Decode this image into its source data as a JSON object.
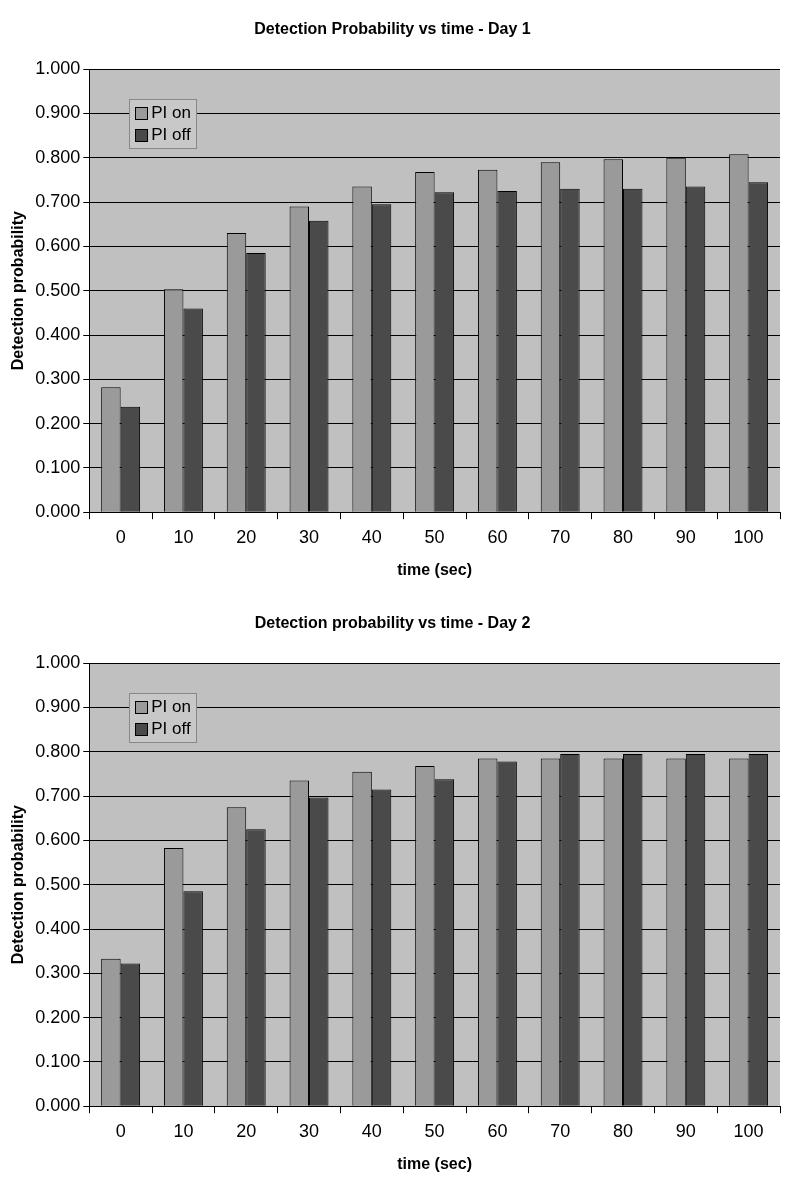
{
  "chart_data": [
    {
      "type": "bar",
      "title": "Detection Probability vs time - Day 1",
      "xlabel": "time (sec)",
      "ylabel": "Detection probability",
      "categories": [
        "0",
        "10",
        "20",
        "30",
        "40",
        "50",
        "60",
        "70",
        "80",
        "90",
        "100"
      ],
      "series": [
        {
          "name": "PI on",
          "color": "#9a9a9a",
          "values": [
            0.282,
            0.503,
            0.63,
            0.69,
            0.735,
            0.768,
            0.773,
            0.79,
            0.797,
            0.8,
            0.808
          ]
        },
        {
          "name": "PI off",
          "color": "#4a4a4a",
          "values": [
            0.238,
            0.46,
            0.585,
            0.658,
            0.695,
            0.722,
            0.725,
            0.73,
            0.73,
            0.735,
            0.745
          ]
        }
      ],
      "ylim": [
        0,
        1
      ],
      "yticks": [
        {
          "value": 0,
          "label": "0.000"
        },
        {
          "value": 0.1,
          "label": "0.100"
        },
        {
          "value": 0.2,
          "label": "0.200"
        },
        {
          "value": 0.3,
          "label": "0.300"
        },
        {
          "value": 0.4,
          "label": "0.400"
        },
        {
          "value": 0.5,
          "label": "0.500"
        },
        {
          "value": 0.6,
          "label": "0.600"
        },
        {
          "value": 0.7,
          "label": "0.700"
        },
        {
          "value": 0.8,
          "label": "0.800"
        },
        {
          "value": 0.9,
          "label": "0.900"
        },
        {
          "value": 1,
          "label": "1.000"
        }
      ],
      "grid": "y",
      "legend": "top left"
    },
    {
      "type": "bar",
      "title": "Detection probability vs time - Day 2",
      "xlabel": "time (sec)",
      "ylabel": "Detection probability",
      "categories": [
        "0",
        "10",
        "20",
        "30",
        "40",
        "50",
        "60",
        "70",
        "80",
        "90",
        "100"
      ],
      "series": [
        {
          "name": "PI on",
          "color": "#9a9a9a",
          "values": [
            0.333,
            0.583,
            0.675,
            0.735,
            0.755,
            0.768,
            0.785,
            0.785,
            0.785,
            0.785,
            0.785
          ]
        },
        {
          "name": "PI off",
          "color": "#4a4a4a",
          "values": [
            0.322,
            0.485,
            0.625,
            0.697,
            0.715,
            0.738,
            0.778,
            0.795,
            0.795,
            0.795,
            0.795
          ]
        }
      ],
      "ylim": [
        0,
        1
      ],
      "yticks": [
        {
          "value": 0,
          "label": "0.000"
        },
        {
          "value": 0.1,
          "label": "0.100"
        },
        {
          "value": 0.2,
          "label": "0.200"
        },
        {
          "value": 0.3,
          "label": "0.300"
        },
        {
          "value": 0.4,
          "label": "0.400"
        },
        {
          "value": 0.5,
          "label": "0.500"
        },
        {
          "value": 0.6,
          "label": "0.600"
        },
        {
          "value": 0.7,
          "label": "0.700"
        },
        {
          "value": 0.8,
          "label": "0.800"
        },
        {
          "value": 0.9,
          "label": "0.900"
        },
        {
          "value": 1,
          "label": "1.000"
        }
      ],
      "grid": "y",
      "legend": "top left"
    }
  ]
}
